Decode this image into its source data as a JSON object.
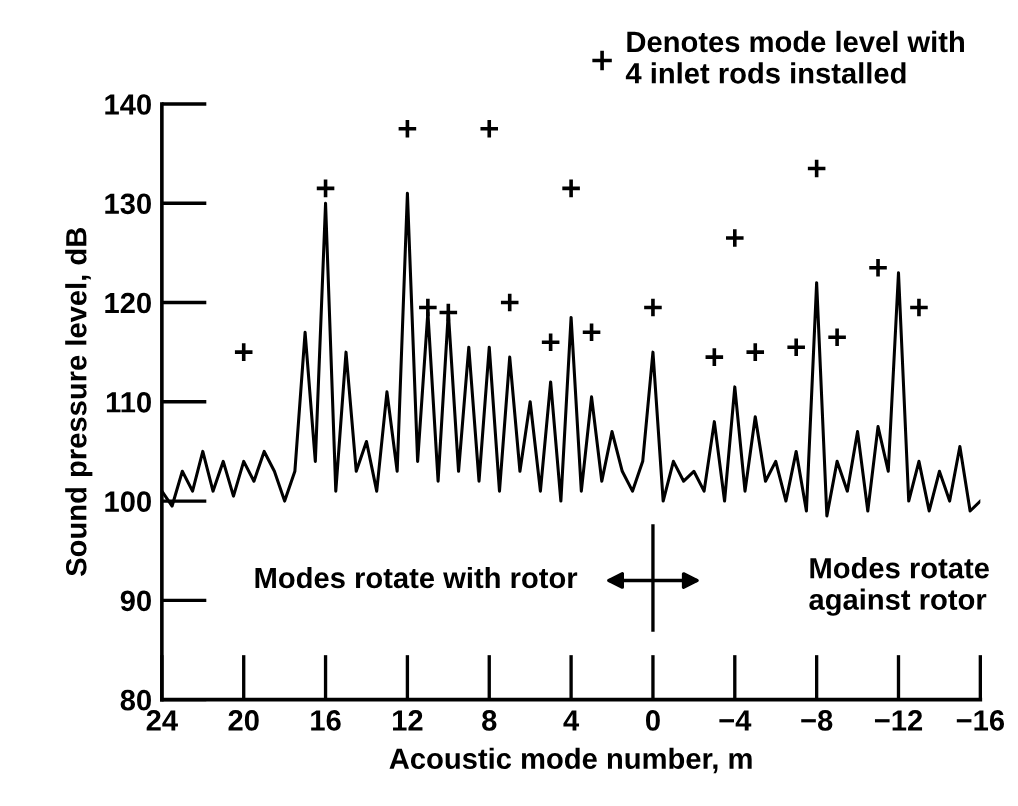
{
  "chart_data": {
    "type": "line",
    "xlabel": "Acoustic mode number, m",
    "ylabel": "Sound pressure level, dB",
    "xlim": [
      24,
      -16
    ],
    "xticks": [
      24,
      20,
      16,
      12,
      8,
      4,
      0,
      {
        "value": -4,
        "label": "−4"
      },
      {
        "value": -8,
        "label": "−8"
      },
      {
        "value": -12,
        "label": "−12"
      },
      {
        "value": -16,
        "label": "−16"
      }
    ],
    "ylim": [
      80,
      140
    ],
    "yticks": [
      80,
      90,
      100,
      110,
      120,
      130,
      140
    ],
    "grid": false,
    "legend": "top right",
    "annotations": [
      "Modes rotate with rotor",
      "Modes rotate\nagainst rotor"
    ],
    "series": [
      {
        "color": "#000000",
        "marker": "none",
        "line_style": "solid",
        "x": [
          24,
          23.5,
          23,
          22.5,
          22,
          21.5,
          21,
          20.5,
          20,
          19.5,
          19,
          18.5,
          18,
          17.5,
          17,
          16.5,
          16,
          15.5,
          15,
          14.5,
          14,
          13.5,
          13,
          12.5,
          12,
          11.5,
          11,
          10.5,
          10,
          9.5,
          9,
          8.5,
          8,
          7.5,
          7,
          6.5,
          6,
          5.5,
          5,
          4.5,
          4,
          3.5,
          3,
          2.5,
          2,
          1.5,
          1,
          0.5,
          0,
          -0.5,
          -1,
          -1.5,
          -2,
          -2.5,
          -3,
          -3.5,
          -4,
          -4.5,
          -5,
          -5.5,
          -6,
          -6.5,
          -7,
          -7.5,
          -8,
          -8.5,
          -9,
          -9.5,
          -10,
          -10.5,
          -11,
          -11.5,
          -12,
          -12.5,
          -13,
          -13.5,
          -14,
          -14.5,
          -15,
          -15.5,
          -16
        ],
        "values": [
          101,
          99.5,
          103,
          101,
          105,
          101,
          104,
          100.5,
          104,
          102,
          105,
          103,
          100,
          103,
          117,
          104,
          130,
          101,
          115,
          103,
          106,
          101,
          111,
          103,
          131,
          104,
          119,
          102,
          119,
          103,
          115.5,
          102,
          115.5,
          101,
          114.5,
          103,
          110,
          101,
          112,
          100,
          118.5,
          101,
          110.5,
          102,
          107,
          103,
          101,
          104,
          115,
          100,
          104,
          102,
          103,
          101,
          108,
          100,
          111.5,
          101,
          108.5,
          102,
          104,
          100,
          105,
          99,
          122,
          98.5,
          104,
          101,
          107,
          99,
          107.5,
          103,
          123,
          100,
          104,
          99,
          103,
          100,
          105.5,
          99,
          100
        ]
      },
      {
        "type": "scatter",
        "color": "#000000",
        "marker": "cross",
        "name": "Denotes mode level with\n4 inlet rods installed",
        "x": [
          20,
          16,
          12,
          11,
          10,
          8,
          7,
          5,
          4,
          3,
          0,
          -3,
          -4,
          -5,
          -7,
          -8,
          -9,
          -11,
          -13
        ],
        "values": [
          115,
          131.5,
          137.5,
          119.5,
          119,
          137.5,
          120,
          116,
          131.5,
          117,
          119.5,
          114.5,
          126.5,
          115,
          115.5,
          133.5,
          116.5,
          123.5,
          119.5
        ]
      }
    ]
  }
}
